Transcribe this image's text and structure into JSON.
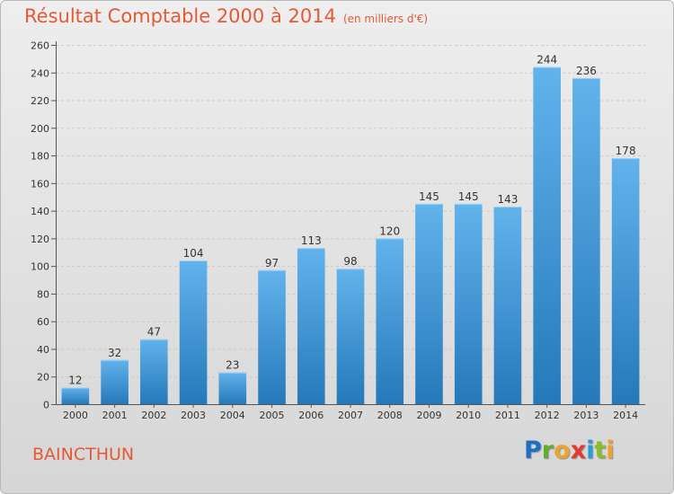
{
  "header": {
    "title": "Résultat Comptable 2000 à 2014",
    "subtitle": "(en milliers d'€)"
  },
  "place": "BAINCTHUN",
  "logo": {
    "letters": [
      {
        "ch": "P",
        "color": "#1d6fc4"
      },
      {
        "ch": "r",
        "color": "#5fae2e"
      },
      {
        "ch": "o",
        "color": "#f0a32a"
      },
      {
        "ch": "x",
        "color": "#e23b2e"
      },
      {
        "ch": "i",
        "color": "#2a9ad8"
      },
      {
        "ch": "t",
        "color": "#8bbd2a"
      },
      {
        "ch": "i",
        "color": "#f0a32a"
      }
    ]
  },
  "colors": {
    "accent": "#e45a36",
    "bar_top": "#62b3ec",
    "bar_bottom": "#2579ba"
  },
  "chart_data": {
    "type": "bar",
    "categories": [
      "2000",
      "2001",
      "2002",
      "2003",
      "2004",
      "2005",
      "2006",
      "2007",
      "2008",
      "2009",
      "2010",
      "2011",
      "2012",
      "2013",
      "2014"
    ],
    "values": [
      12,
      32,
      47,
      104,
      23,
      97,
      113,
      98,
      120,
      145,
      145,
      143,
      244,
      236,
      178
    ],
    "ylim": [
      0,
      260
    ],
    "yticks": [
      0,
      20,
      40,
      60,
      80,
      100,
      120,
      140,
      160,
      180,
      200,
      220,
      240,
      260
    ],
    "grid": true,
    "data_labels": true
  }
}
